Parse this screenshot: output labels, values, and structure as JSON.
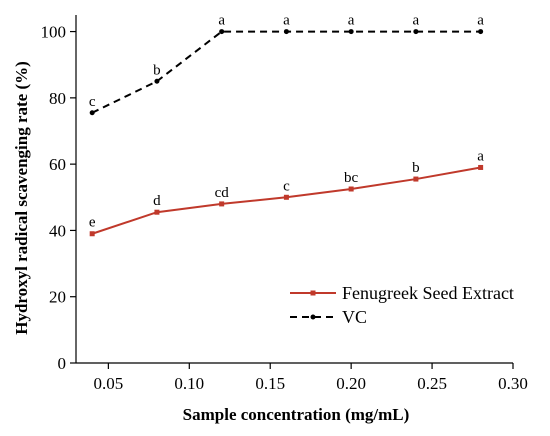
{
  "chart_data": {
    "type": "line",
    "xlabel": "Sample concentration (mg/mL)",
    "ylabel": "Hydroxyl radical scavenging rate (%)",
    "xlim": [
      0.03,
      0.3
    ],
    "ylim": [
      0,
      105
    ],
    "x_ticks": [
      "0.05",
      "0.10",
      "0.15",
      "0.20",
      "0.25",
      "0.30"
    ],
    "y_ticks": [
      "0",
      "20",
      "40",
      "60",
      "80",
      "100"
    ],
    "x": [
      0.04,
      0.08,
      0.12,
      0.16,
      0.2,
      0.24,
      0.28
    ],
    "series": [
      {
        "name": "Fenugreek Seed Extract",
        "color": "#c0392b",
        "line_style": "solid",
        "marker": "square",
        "values": [
          39,
          45.5,
          48,
          50,
          52.5,
          55.5,
          59
        ],
        "labels": [
          "e",
          "d",
          "cd",
          "c",
          "bc",
          "b",
          "a"
        ]
      },
      {
        "name": "VC",
        "color": "#000000",
        "line_style": "dashed",
        "marker": "circle",
        "values": [
          75.5,
          85,
          100,
          100,
          100,
          100,
          100
        ],
        "labels": [
          "c",
          "b",
          "a",
          "a",
          "a",
          "a",
          "a"
        ]
      }
    ],
    "grid": false,
    "legend_position": "bottom-right"
  }
}
